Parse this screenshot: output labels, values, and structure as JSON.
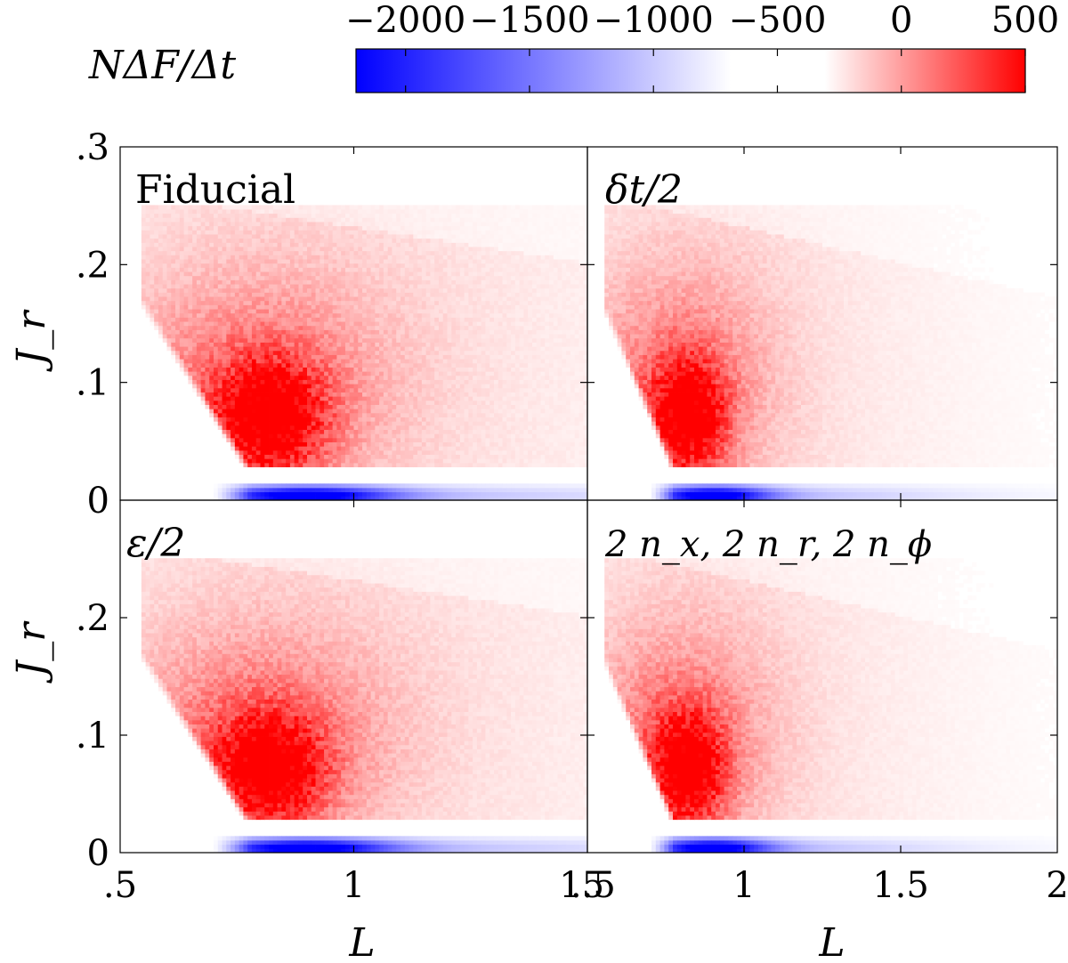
{
  "colorbar": {
    "label": "NΔF/Δt",
    "ticks": [
      "−2000",
      "−1500",
      "−1000",
      "−500",
      "0",
      "500"
    ],
    "tick_values": [
      -2000,
      -1500,
      -1000,
      -500,
      0,
      500
    ],
    "range": [
      -2200,
      500
    ],
    "colors": {
      "negative": "#0000ff",
      "zero": "#ffffff",
      "positive": "#ff0000"
    }
  },
  "chart_data": [
    {
      "type": "heatmap",
      "title": "Fiducial",
      "xlabel": "",
      "ylabel": "J_r",
      "xlim": [
        0.5,
        1.5
      ],
      "ylim": [
        0,
        0.3
      ],
      "x_ticks": [],
      "y_ticks": [
        ".3",
        ".2",
        ".1",
        "0"
      ],
      "y_tick_values": [
        0.3,
        0.2,
        0.1,
        0
      ],
      "features": {
        "positive_peak": {
          "L": 0.82,
          "J_r": 0.07,
          "value": 450
        },
        "negative_peak": {
          "L": 0.9,
          "J_r": 0.005,
          "value": -2000
        }
      }
    },
    {
      "type": "heatmap",
      "title": "δt/2",
      "xlabel": "",
      "ylabel": "",
      "xlim": [
        0.5,
        2.0
      ],
      "ylim": [
        0,
        0.3
      ],
      "x_ticks": [],
      "y_ticks": [],
      "features": {
        "positive_peak": {
          "L": 0.82,
          "J_r": 0.07,
          "value": 450
        },
        "negative_peak": {
          "L": 0.9,
          "J_r": 0.005,
          "value": -2000
        }
      }
    },
    {
      "type": "heatmap",
      "title": "ε/2",
      "xlabel": "L",
      "ylabel": "J_r",
      "xlim": [
        0.5,
        1.5
      ],
      "ylim": [
        0,
        0.3
      ],
      "x_ticks": [
        ".5",
        "1",
        "1.5"
      ],
      "x_tick_values": [
        0.5,
        1.0,
        1.5
      ],
      "y_ticks": [
        ".2",
        ".1",
        "0"
      ],
      "y_tick_values": [
        0.2,
        0.1,
        0
      ],
      "features": {
        "positive_peak": {
          "L": 0.82,
          "J_r": 0.07,
          "value": 450
        },
        "negative_peak": {
          "L": 0.9,
          "J_r": 0.005,
          "value": -2000
        }
      }
    },
    {
      "type": "heatmap",
      "title": "2 n_x, 2 n_r, 2 n_ϕ",
      "xlabel": "L",
      "ylabel": "",
      "xlim": [
        0.5,
        2.0
      ],
      "ylim": [
        0,
        0.3
      ],
      "x_ticks": [
        ".5",
        "1",
        "1.5",
        "2"
      ],
      "x_tick_values": [
        0.5,
        1.0,
        1.5,
        2.0
      ],
      "y_ticks": [],
      "features": {
        "positive_peak": {
          "L": 0.82,
          "J_r": 0.07,
          "value": 450
        },
        "negative_peak": {
          "L": 0.9,
          "J_r": 0.005,
          "value": -2000
        }
      }
    }
  ]
}
